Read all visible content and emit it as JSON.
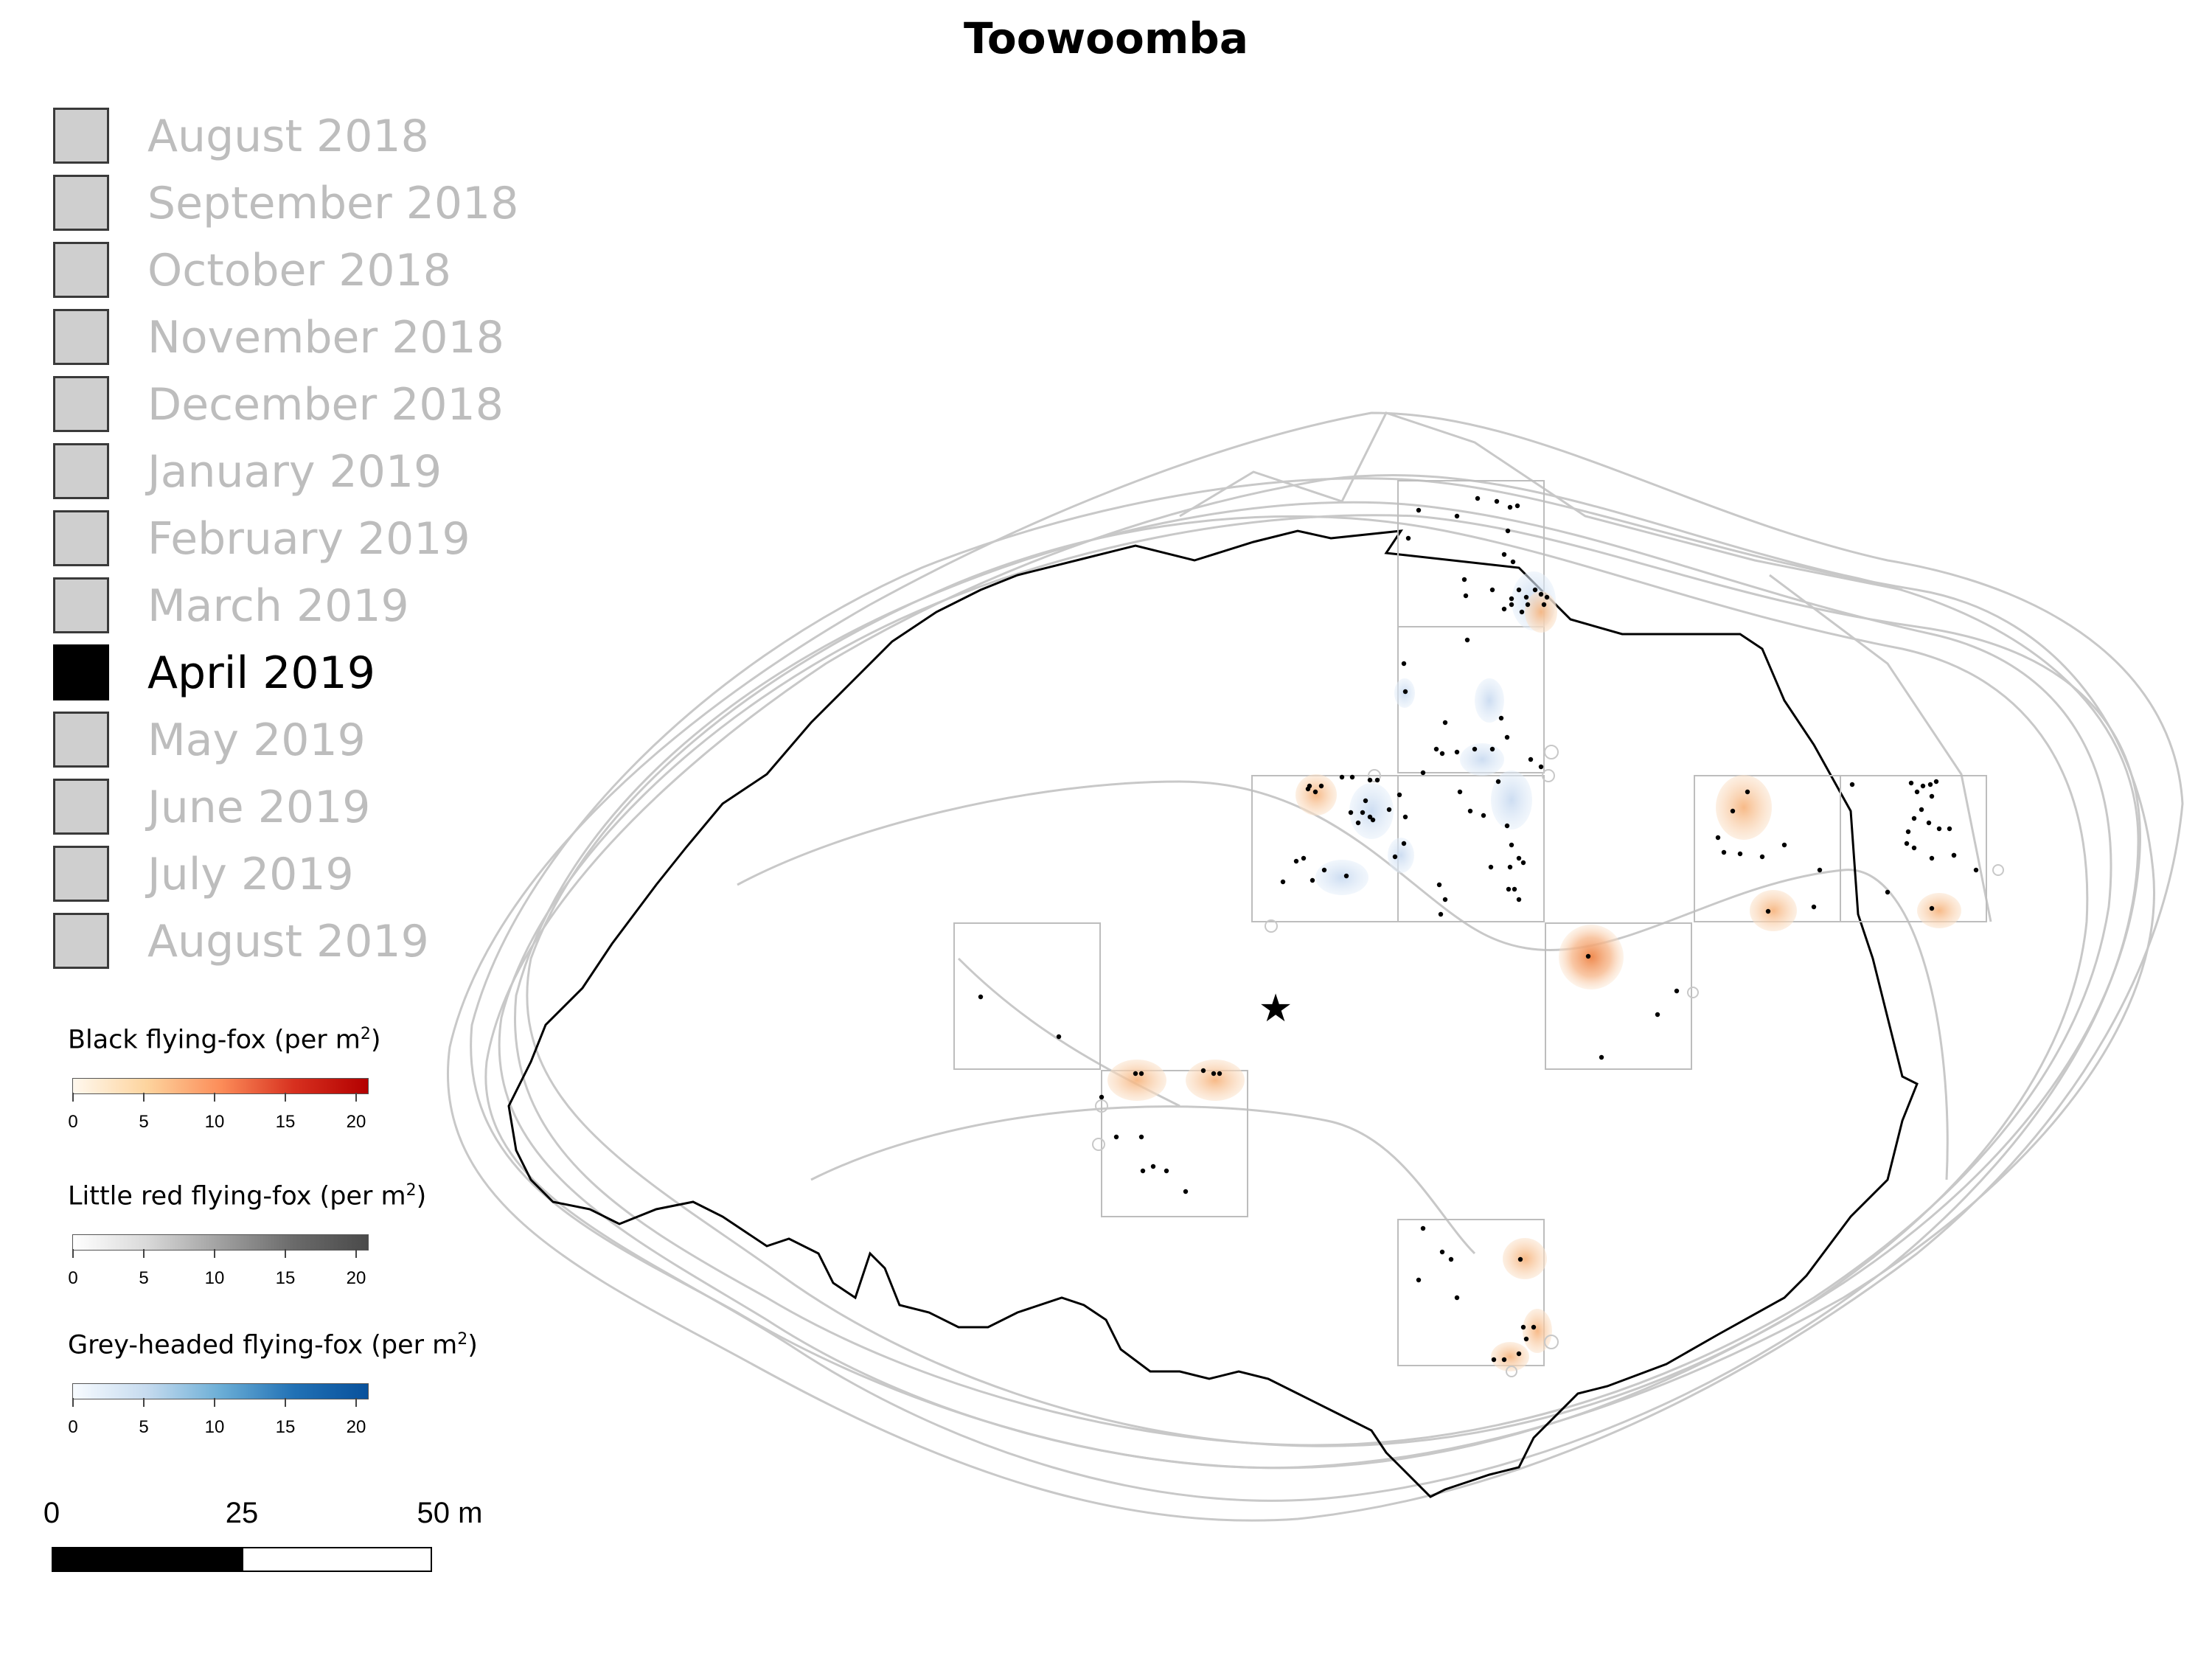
{
  "title": "Toowoomba",
  "months": [
    {
      "label": "August 2018",
      "active": false
    },
    {
      "label": "September 2018",
      "active": false
    },
    {
      "label": "October 2018",
      "active": false
    },
    {
      "label": "November 2018",
      "active": false
    },
    {
      "label": "December 2018",
      "active": false
    },
    {
      "label": "January 2019",
      "active": false
    },
    {
      "label": "February 2019",
      "active": false
    },
    {
      "label": "March 2019",
      "active": false
    },
    {
      "label": "April 2019",
      "active": true
    },
    {
      "label": "May 2019",
      "active": false
    },
    {
      "label": "June 2019",
      "active": false
    },
    {
      "label": "July 2019",
      "active": false
    },
    {
      "label": "August 2019",
      "active": false
    }
  ],
  "colorbars": [
    {
      "title": "Black flying-fox (per m",
      "sup": "2",
      "close": ")",
      "ticks": [
        "0",
        "5",
        "10",
        "15",
        "20"
      ],
      "colors": [
        "#fff8ee",
        "#fdd49e",
        "#fc8d59",
        "#d7301f",
        "#b30000"
      ]
    },
    {
      "title": "Little red flying-fox (per m",
      "sup": "2",
      "close": ")",
      "ticks": [
        "0",
        "5",
        "10",
        "15",
        "20"
      ],
      "colors": [
        "#ffffff",
        "#d9d9d9",
        "#a0a0a0",
        "#6a6a6a",
        "#4a4a4a"
      ]
    },
    {
      "title": "Grey-headed flying-fox (per m",
      "sup": "2",
      "close": ")",
      "ticks": [
        "0",
        "5",
        "10",
        "15",
        "20"
      ],
      "colors": [
        "#f7fbff",
        "#c6dbef",
        "#6baed6",
        "#2171b5",
        "#08519c"
      ]
    }
  ],
  "scalebar": {
    "labels": [
      "0",
      "25",
      "50 m"
    ]
  },
  "colors": {
    "outline_current": "#000000",
    "outline_other": "#c8c8c8",
    "quadrat_border": "#bdbdbd",
    "black_ff": "#f4a460",
    "grey_headed_ff": "#a9c6e8"
  },
  "icons": {
    "roost_centre": "star-icon"
  }
}
